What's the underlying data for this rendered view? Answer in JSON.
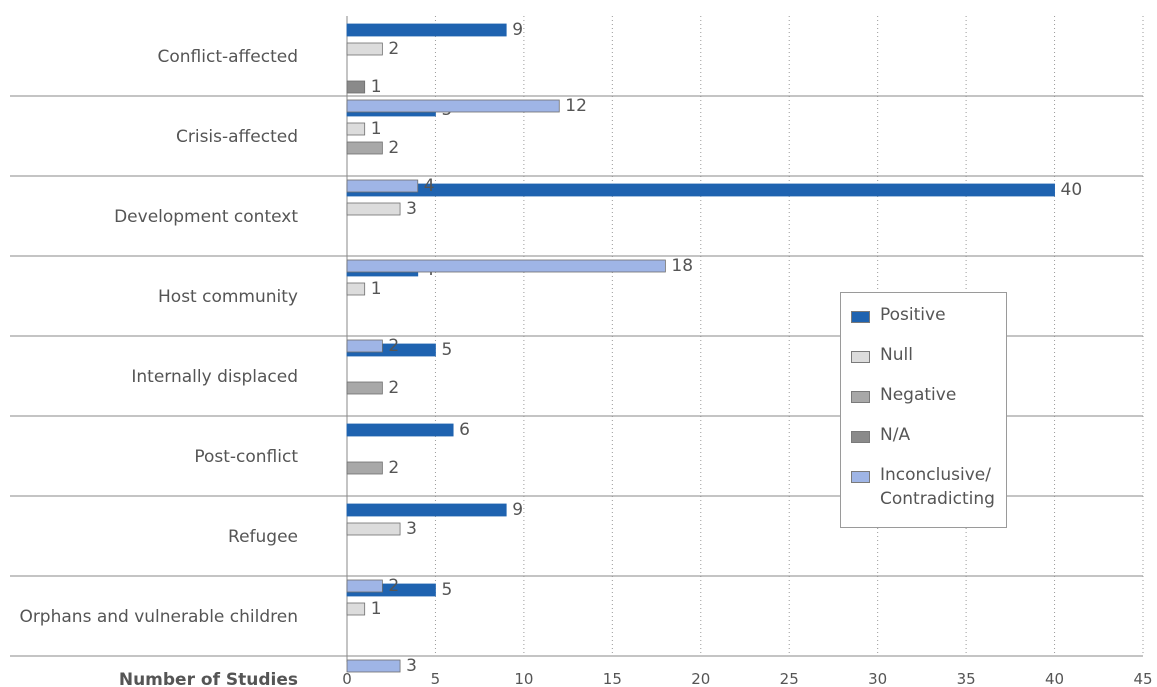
{
  "chart_data": {
    "type": "bar",
    "orientation": "horizontal",
    "xlabel": "Number of Studies",
    "xlim": [
      0,
      45
    ],
    "xticks": [
      0,
      5,
      10,
      15,
      20,
      25,
      30,
      35,
      40,
      45
    ],
    "grid": "vertical dotted",
    "legend_position": "right",
    "categories": [
      "Conflict-affected",
      "Crisis-affected",
      "Development context",
      "Host community",
      "Internally displaced",
      "Post-conflict",
      "Refugee",
      "Orphans and vulnerable children"
    ],
    "series": [
      {
        "name": "Positive",
        "color": "#1f63b0",
        "values": [
          9,
          5,
          40,
          4,
          5,
          6,
          9,
          5
        ]
      },
      {
        "name": "Null",
        "color": "#dcdcdc",
        "values": [
          2,
          1,
          3,
          1,
          null,
          null,
          3,
          1
        ]
      },
      {
        "name": "Negative",
        "color": "#a8a8a8",
        "values": [
          null,
          2,
          null,
          null,
          2,
          2,
          null,
          null
        ]
      },
      {
        "name": "N/A",
        "color": "#8a8a8a",
        "values": [
          1,
          null,
          null,
          null,
          null,
          null,
          null,
          null
        ]
      },
      {
        "name": "Inconclusive/\nContradicting",
        "color": "#9fb5e6",
        "values": [
          12,
          4,
          18,
          2,
          null,
          null,
          2,
          3
        ]
      }
    ]
  },
  "legend": {
    "items": [
      {
        "label": "Positive",
        "color": "#1f63b0"
      },
      {
        "label": "Null",
        "color": "#dcdcdc"
      },
      {
        "label": "Negative",
        "color": "#a8a8a8"
      },
      {
        "label": "N/A",
        "color": "#8a8a8a"
      },
      {
        "label": "Inconclusive/\nContradicting",
        "color": "#9fb5e6"
      }
    ]
  }
}
